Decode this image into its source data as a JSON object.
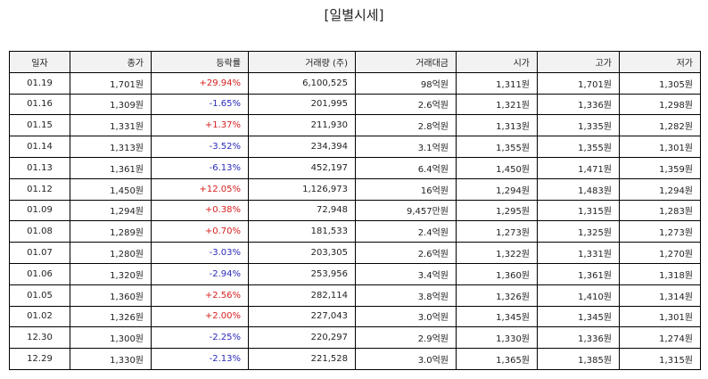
{
  "header": {
    "title": "[일별시세]"
  },
  "colors": {
    "up": "#d62020",
    "down": "#2a2ab8",
    "header_bg": "#f2f2f2"
  },
  "table": {
    "columns": [
      "일자",
      "종가",
      "등락률",
      "거래량 (주)",
      "거래대금",
      "시가",
      "고가",
      "저가"
    ],
    "rows": [
      [
        "01.19",
        "1,701원",
        "+29.94%",
        "6,100,525",
        "98억원",
        "1,311원",
        "1,701원",
        "1,305원"
      ],
      [
        "01.16",
        "1,309원",
        "-1.65%",
        "201,995",
        "2.6억원",
        "1,321원",
        "1,336원",
        "1,298원"
      ],
      [
        "01.15",
        "1,331원",
        "+1.37%",
        "211,930",
        "2.8억원",
        "1,313원",
        "1,335원",
        "1,282원"
      ],
      [
        "01.14",
        "1,313원",
        "-3.52%",
        "234,394",
        "3.1억원",
        "1,355원",
        "1,355원",
        "1,301원"
      ],
      [
        "01.13",
        "1,361원",
        "-6.13%",
        "452,197",
        "6.4억원",
        "1,450원",
        "1,471원",
        "1,359원"
      ],
      [
        "01.12",
        "1,450원",
        "+12.05%",
        "1,126,973",
        "16억원",
        "1,294원",
        "1,483원",
        "1,294원"
      ],
      [
        "01.09",
        "1,294원",
        "+0.38%",
        "72,948",
        "9,457만원",
        "1,295원",
        "1,315원",
        "1,283원"
      ],
      [
        "01.08",
        "1,289원",
        "+0.70%",
        "181,533",
        "2.4억원",
        "1,273원",
        "1,325원",
        "1,273원"
      ],
      [
        "01.07",
        "1,280원",
        "-3.03%",
        "203,305",
        "2.6억원",
        "1,322원",
        "1,331원",
        "1,270원"
      ],
      [
        "01.06",
        "1,320원",
        "-2.94%",
        "253,956",
        "3.4억원",
        "1,360원",
        "1,361원",
        "1,318원"
      ],
      [
        "01.05",
        "1,360원",
        "+2.56%",
        "282,114",
        "3.8억원",
        "1,326원",
        "1,410원",
        "1,314원"
      ],
      [
        "01.02",
        "1,326원",
        "+2.00%",
        "227,043",
        "3.0억원",
        "1,345원",
        "1,345원",
        "1,301원"
      ],
      [
        "12.30",
        "1,300원",
        "-2.25%",
        "220,297",
        "2.9억원",
        "1,330원",
        "1,336원",
        "1,274원"
      ],
      [
        "12.29",
        "1,330원",
        "-2.13%",
        "221,528",
        "3.0억원",
        "1,365원",
        "1,385원",
        "1,315원"
      ]
    ]
  }
}
